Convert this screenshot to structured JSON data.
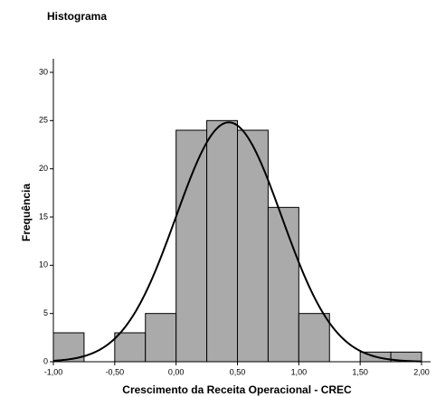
{
  "chart_data": {
    "type": "histogram",
    "title": "Histograma",
    "xlabel": "Crescimento da Receita Operacional - CREC",
    "ylabel": "Frequência",
    "bins": [
      -1,
      -0.75,
      -0.5,
      -0.25,
      0,
      0.25,
      0.5,
      0.75,
      1,
      1.25,
      1.5,
      1.75,
      2
    ],
    "values": [
      3,
      0,
      3,
      5,
      24,
      25,
      24,
      16,
      5,
      0,
      1,
      1
    ],
    "color": "#aaaaaa",
    "curve": {
      "mean": 0.43,
      "sd": 0.43
    },
    "xlim": [
      -1,
      2
    ],
    "xticks": [
      {
        "value": -1,
        "label": "-1,00"
      },
      {
        "value": -0.5,
        "label": "-0,50"
      },
      {
        "value": 0,
        "label": "0,00"
      },
      {
        "value": 0.5,
        "label": "0,50"
      },
      {
        "value": 1,
        "label": "1,00"
      },
      {
        "value": 1.5,
        "label": "1,50"
      },
      {
        "value": 2,
        "label": "2,00"
      }
    ],
    "ylim": [
      0,
      30
    ],
    "yticks": [
      0,
      5,
      10,
      15,
      20,
      25,
      30
    ]
  }
}
